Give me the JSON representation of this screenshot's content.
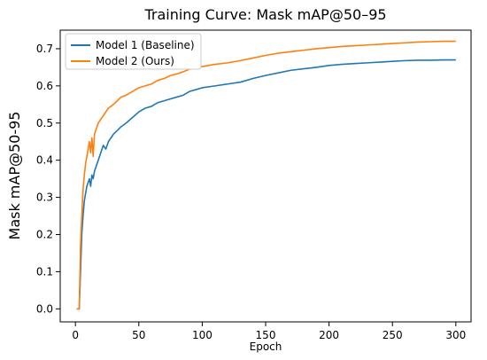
{
  "chart_data": {
    "type": "line",
    "title": "Training Curve: Mask mAP@50–95",
    "xlabel": "Epoch",
    "ylabel": "Mask mAP@50-95",
    "xlim": [
      -12,
      312
    ],
    "ylim": [
      -0.035,
      0.75
    ],
    "xticks": [
      0,
      50,
      100,
      150,
      200,
      250,
      300
    ],
    "yticks": [
      0.0,
      0.1,
      0.2,
      0.3,
      0.4,
      0.5,
      0.6,
      0.7
    ],
    "ytick_labels": [
      "0.0",
      "0.1",
      "0.2",
      "0.3",
      "0.4",
      "0.5",
      "0.6",
      "0.7"
    ],
    "grid": false,
    "legend_position": "top-left",
    "series": [
      {
        "name": "Model 1 (Baseline)",
        "color": "#1f77b4",
        "x": [
          1,
          3,
          4,
          5,
          6,
          7,
          8,
          9,
          10,
          11,
          12,
          13,
          14,
          15,
          16,
          18,
          20,
          22,
          24,
          26,
          28,
          30,
          33,
          36,
          40,
          45,
          50,
          55,
          60,
          65,
          70,
          75,
          80,
          85,
          90,
          95,
          100,
          110,
          120,
          130,
          140,
          150,
          160,
          170,
          180,
          190,
          200,
          210,
          220,
          230,
          240,
          250,
          260,
          270,
          280,
          290,
          300
        ],
        "y": [
          0.0,
          0.0,
          0.1,
          0.2,
          0.25,
          0.29,
          0.31,
          0.33,
          0.34,
          0.35,
          0.33,
          0.36,
          0.35,
          0.37,
          0.38,
          0.4,
          0.42,
          0.44,
          0.43,
          0.45,
          0.46,
          0.47,
          0.48,
          0.49,
          0.5,
          0.515,
          0.53,
          0.54,
          0.545,
          0.555,
          0.56,
          0.565,
          0.57,
          0.575,
          0.585,
          0.59,
          0.595,
          0.6,
          0.605,
          0.61,
          0.62,
          0.628,
          0.635,
          0.642,
          0.646,
          0.65,
          0.655,
          0.658,
          0.66,
          0.662,
          0.664,
          0.666,
          0.668,
          0.669,
          0.669,
          0.67,
          0.67
        ]
      },
      {
        "name": "Model 2 (Ours)",
        "color": "#ff7f0e",
        "x": [
          1,
          3,
          4,
          5,
          6,
          7,
          8,
          9,
          10,
          11,
          12,
          13,
          14,
          15,
          16,
          18,
          20,
          22,
          24,
          26,
          28,
          30,
          33,
          36,
          40,
          45,
          50,
          55,
          60,
          65,
          70,
          75,
          80,
          85,
          90,
          95,
          100,
          110,
          120,
          130,
          140,
          150,
          160,
          170,
          180,
          190,
          200,
          210,
          220,
          230,
          240,
          250,
          260,
          270,
          280,
          290,
          300
        ],
        "y": [
          0.0,
          0.0,
          0.17,
          0.25,
          0.32,
          0.36,
          0.39,
          0.41,
          0.43,
          0.45,
          0.42,
          0.46,
          0.41,
          0.47,
          0.48,
          0.5,
          0.51,
          0.52,
          0.53,
          0.54,
          0.545,
          0.55,
          0.56,
          0.57,
          0.575,
          0.585,
          0.595,
          0.6,
          0.605,
          0.615,
          0.62,
          0.628,
          0.632,
          0.638,
          0.645,
          0.648,
          0.652,
          0.658,
          0.662,
          0.668,
          0.675,
          0.682,
          0.688,
          0.692,
          0.696,
          0.7,
          0.703,
          0.706,
          0.708,
          0.71,
          0.712,
          0.714,
          0.716,
          0.718,
          0.719,
          0.72,
          0.72
        ]
      }
    ]
  }
}
